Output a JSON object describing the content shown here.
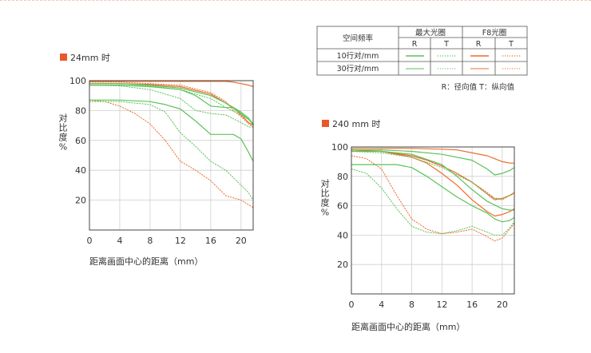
{
  "colors": {
    "orange": "#ef6c2c",
    "green": "#5cc25a",
    "marker": "#e9572b",
    "grid": "#cfcfcf",
    "frame": "#444444"
  },
  "legend": {
    "header_spatial": "空间频率",
    "header_max": "最大光圈",
    "header_f8": "F8光圈",
    "r": "R",
    "t": "T",
    "row1": "10行对/mm",
    "row2": "30行对/mm",
    "note": "R：径向值    T：纵向值"
  },
  "chart_data": [
    {
      "type": "line",
      "title": "24mm 时",
      "xlabel": "距离画面中心的距离（mm）",
      "ylabel": "对比度%",
      "xlim": [
        0,
        21.6
      ],
      "ylim": [
        0,
        100
      ],
      "xticks": [
        "0",
        "4",
        "8",
        "12",
        "16",
        "20"
      ],
      "yticks": [
        "20",
        "40",
        "60",
        "80",
        "100"
      ],
      "series": [
        {
          "color": "orange",
          "style": "solid",
          "x": [
            0,
            4,
            8,
            12,
            16,
            18,
            19,
            20,
            21,
            21.6
          ],
          "y": [
            99.5,
            99.5,
            99.5,
            99.5,
            99.5,
            99.5,
            99,
            98,
            97,
            96
          ]
        },
        {
          "color": "orange",
          "style": "dotted",
          "x": [
            0,
            4,
            8,
            12,
            16,
            18,
            19,
            20,
            21,
            21.6
          ],
          "y": [
            99,
            99,
            98,
            97,
            92,
            86,
            80,
            76,
            71,
            69
          ]
        },
        {
          "color": "orange",
          "style": "solid",
          "x": [
            0,
            4,
            8,
            12,
            16,
            18,
            19,
            20,
            21,
            21.6
          ],
          "y": [
            98,
            98,
            97.5,
            96,
            91,
            85,
            82,
            77,
            72,
            70
          ]
        },
        {
          "color": "orange",
          "style": "dotted",
          "x": [
            0,
            2,
            4,
            6,
            8,
            10,
            12,
            14,
            16,
            18,
            20,
            21.6
          ],
          "y": [
            87,
            86,
            83,
            78,
            71,
            60,
            46,
            40,
            33,
            23,
            20,
            15
          ]
        },
        {
          "color": "green",
          "style": "solid",
          "x": [
            0,
            4,
            8,
            12,
            16,
            18,
            20,
            21,
            21.6
          ],
          "y": [
            98,
            98,
            97,
            95,
            90,
            85,
            78,
            74,
            71
          ]
        },
        {
          "color": "green",
          "style": "dotted",
          "x": [
            0,
            4,
            8,
            12,
            16,
            18,
            20,
            21,
            21.6
          ],
          "y": [
            97,
            97,
            96.5,
            94,
            88,
            82,
            77,
            74,
            72
          ]
        },
        {
          "color": "green",
          "style": "solid",
          "x": [
            0,
            4,
            8,
            10,
            12,
            14,
            16,
            18,
            19,
            20,
            21,
            21.6
          ],
          "y": [
            87,
            87,
            86,
            84,
            81,
            73,
            64,
            64,
            64,
            61,
            52,
            46
          ]
        },
        {
          "color": "green",
          "style": "dotted",
          "x": [
            0,
            4,
            8,
            10,
            12,
            14,
            16,
            18,
            20,
            21,
            21.6
          ],
          "y": [
            86,
            86,
            84,
            79,
            65,
            56,
            46,
            40,
            30,
            25,
            20
          ]
        },
        {
          "color": "green",
          "style": "solid",
          "x": [
            0,
            4,
            8,
            12,
            14,
            16,
            18,
            19,
            20,
            21,
            21.6
          ],
          "y": [
            97,
            97,
            96,
            94,
            90,
            83,
            82,
            82,
            79,
            75,
            70
          ]
        },
        {
          "color": "green",
          "style": "dotted",
          "x": [
            0,
            4,
            8,
            12,
            14,
            16,
            18,
            20,
            21,
            21.6
          ],
          "y": [
            97,
            96.5,
            94,
            88,
            80,
            78,
            77,
            72,
            69,
            69
          ]
        }
      ]
    },
    {
      "type": "line",
      "title": "240 mm 时",
      "xlabel": "距离画面中心的距离（mm）",
      "ylabel": "对比度%",
      "xlim": [
        0,
        21.6
      ],
      "ylim": [
        0,
        100
      ],
      "xticks": [
        "0",
        "4",
        "8",
        "12",
        "16",
        "20"
      ],
      "yticks": [
        "20",
        "40",
        "60",
        "80",
        "100"
      ],
      "series": [
        {
          "color": "orange",
          "style": "solid",
          "x": [
            0,
            4,
            8,
            12,
            14,
            16,
            18,
            19,
            20,
            21,
            21.6
          ],
          "y": [
            99,
            99,
            99,
            98.5,
            98,
            96,
            94,
            92,
            90,
            89,
            89
          ]
        },
        {
          "color": "orange",
          "style": "dotted",
          "x": [
            0,
            4,
            8,
            10,
            12,
            14,
            16,
            18,
            19,
            20,
            21,
            21.6
          ],
          "y": [
            98,
            97,
            94,
            91,
            87,
            82,
            76,
            69,
            65,
            64,
            67,
            69
          ]
        },
        {
          "color": "orange",
          "style": "solid",
          "x": [
            0,
            4,
            8,
            10,
            12,
            14,
            16,
            18,
            19,
            20,
            21,
            21.6
          ],
          "y": [
            98,
            97,
            94,
            91,
            87,
            82,
            76,
            68,
            64,
            65,
            67,
            69
          ]
        },
        {
          "color": "orange",
          "style": "solid",
          "x": [
            0,
            4,
            8,
            10,
            12,
            14,
            16,
            17,
            18,
            19,
            20,
            21,
            21.6
          ],
          "y": [
            98,
            97,
            93,
            89,
            82,
            74,
            64,
            60,
            56,
            53,
            54,
            56,
            58
          ]
        },
        {
          "color": "orange",
          "style": "dotted",
          "x": [
            0,
            2,
            4,
            6,
            8,
            10,
            12,
            14,
            16,
            18,
            19,
            20,
            21,
            21.6
          ],
          "y": [
            94,
            92,
            85,
            67,
            51,
            44,
            41,
            42,
            44,
            39,
            36,
            38,
            44,
            48
          ]
        },
        {
          "color": "green",
          "style": "solid",
          "x": [
            0,
            4,
            8,
            12,
            16,
            18,
            19,
            20,
            21,
            21.6
          ],
          "y": [
            98,
            98,
            97,
            95,
            91,
            85,
            81,
            82,
            84,
            86
          ]
        },
        {
          "color": "green",
          "style": "dotted",
          "x": [
            0,
            4,
            8,
            12,
            16,
            18,
            19,
            20,
            21,
            21.6
          ],
          "y": [
            97,
            96,
            93,
            86,
            76,
            68,
            65,
            65,
            67,
            68
          ]
        },
        {
          "color": "green",
          "style": "solid",
          "x": [
            0,
            4,
            6,
            8,
            10,
            12,
            14,
            16,
            18,
            19,
            20,
            21,
            21.6
          ],
          "y": [
            88,
            88,
            88,
            86,
            80,
            73,
            66,
            60,
            55,
            51,
            49,
            50,
            52
          ]
        },
        {
          "color": "green",
          "style": "dotted",
          "x": [
            0,
            2,
            4,
            6,
            8,
            10,
            12,
            14,
            16,
            18,
            19,
            20,
            21,
            21.6
          ],
          "y": [
            85,
            82,
            72,
            58,
            46,
            42,
            41,
            43,
            46,
            42,
            40,
            40,
            45,
            49
          ]
        },
        {
          "color": "green",
          "style": "solid",
          "x": [
            0,
            4,
            8,
            12,
            14,
            16,
            18,
            20,
            21,
            21.6
          ],
          "y": [
            97,
            97,
            95,
            88,
            80,
            71,
            63,
            58,
            57,
            57
          ]
        }
      ]
    }
  ]
}
